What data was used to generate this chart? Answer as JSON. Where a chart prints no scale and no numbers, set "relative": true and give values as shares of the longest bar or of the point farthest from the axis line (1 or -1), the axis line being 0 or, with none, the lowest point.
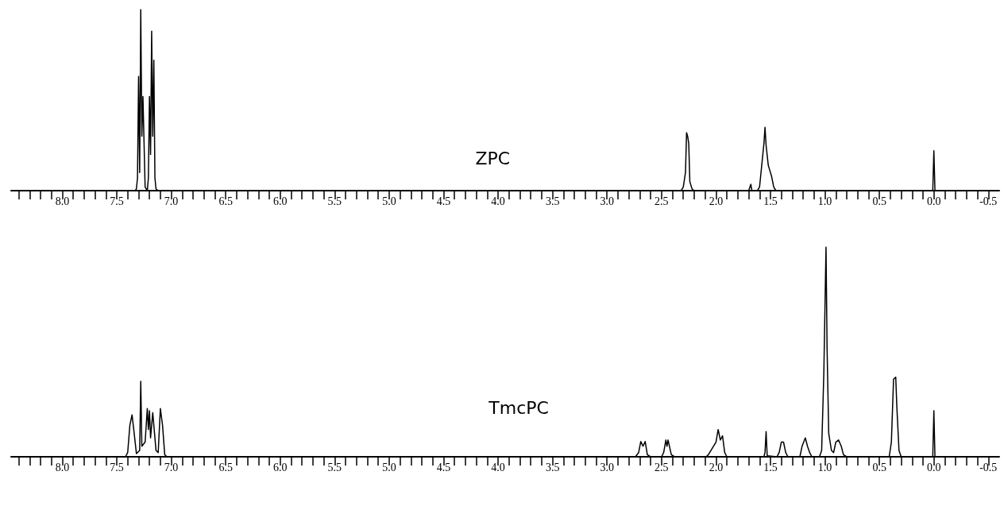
{
  "chart_data": [
    {
      "type": "line",
      "relative": true,
      "xlim": [
        8.47,
        -0.6
      ],
      "grid": false,
      "legend": false,
      "marker": "none",
      "line_style": "solid",
      "xticks": [
        {
          "value": 8.4,
          "label": null
        },
        {
          "value": 8.3,
          "label": null
        },
        {
          "value": 8.2,
          "label": null
        },
        {
          "value": 8.1,
          "label": null
        },
        {
          "value": 8,
          "label": "8.0"
        },
        {
          "value": 7.9,
          "label": null
        },
        {
          "value": 7.8,
          "label": null
        },
        {
          "value": 7.7,
          "label": null
        },
        {
          "value": 7.6,
          "label": null
        },
        7.5,
        {
          "value": 7.4,
          "label": null
        },
        {
          "value": 7.3,
          "label": null
        },
        {
          "value": 7.2,
          "label": null
        },
        {
          "value": 7.1,
          "label": null
        },
        {
          "value": 7,
          "label": "7.0"
        },
        {
          "value": 6.9,
          "label": null
        },
        {
          "value": 6.8,
          "label": null
        },
        {
          "value": 6.7,
          "label": null
        },
        {
          "value": 6.6,
          "label": null
        },
        6.5,
        {
          "value": 6.4,
          "label": null
        },
        {
          "value": 6.3,
          "label": null
        },
        {
          "value": 6.2,
          "label": null
        },
        {
          "value": 6.1,
          "label": null
        },
        {
          "value": 6,
          "label": "6.0"
        },
        {
          "value": 5.9,
          "label": null
        },
        {
          "value": 5.8,
          "label": null
        },
        {
          "value": 5.7,
          "label": null
        },
        {
          "value": 5.6,
          "label": null
        },
        5.5,
        {
          "value": 5.4,
          "label": null
        },
        {
          "value": 5.3,
          "label": null
        },
        {
          "value": 5.2,
          "label": null
        },
        {
          "value": 5.1,
          "label": null
        },
        {
          "value": 5,
          "label": "5.0"
        },
        {
          "value": 4.9,
          "label": null
        },
        {
          "value": 4.8,
          "label": null
        },
        {
          "value": 4.7,
          "label": null
        },
        {
          "value": 4.6,
          "label": null
        },
        4.5,
        {
          "value": 4.4,
          "label": null
        },
        {
          "value": 4.3,
          "label": null
        },
        {
          "value": 4.2,
          "label": null
        },
        {
          "value": 4.1,
          "label": null
        },
        {
          "value": 4,
          "label": "4.0"
        },
        {
          "value": 3.9,
          "label": null
        },
        {
          "value": 3.8,
          "label": null
        },
        {
          "value": 3.7,
          "label": null
        },
        {
          "value": 3.6,
          "label": null
        },
        3.5,
        {
          "value": 3.4,
          "label": null
        },
        {
          "value": 3.3,
          "label": null
        },
        {
          "value": 3.2,
          "label": null
        },
        {
          "value": 3.1,
          "label": null
        },
        {
          "value": 3,
          "label": "3.0"
        },
        {
          "value": 2.9,
          "label": null
        },
        {
          "value": 2.8,
          "label": null
        },
        {
          "value": 2.7,
          "label": null
        },
        {
          "value": 2.6,
          "label": null
        },
        2.5,
        {
          "value": 2.4,
          "label": null
        },
        {
          "value": 2.3,
          "label": null
        },
        {
          "value": 2.2,
          "label": null
        },
        {
          "value": 2.1,
          "label": null
        },
        {
          "value": 2,
          "label": "2.0"
        },
        {
          "value": 1.9,
          "label": null
        },
        {
          "value": 1.8,
          "label": null
        },
        {
          "value": 1.7,
          "label": null
        },
        {
          "value": 1.6,
          "label": null
        },
        1.5,
        {
          "value": 1.4,
          "label": null
        },
        {
          "value": 1.3,
          "label": null
        },
        {
          "value": 1.2,
          "label": null
        },
        {
          "value": 1.1,
          "label": null
        },
        {
          "value": 1,
          "label": "1.0"
        },
        {
          "value": 0.9,
          "label": null
        },
        {
          "value": 0.8,
          "label": null
        },
        {
          "value": 0.7,
          "label": null
        },
        {
          "value": 0.6,
          "label": null
        },
        0.5,
        {
          "value": 0.4,
          "label": null
        },
        {
          "value": 0.3,
          "label": null
        },
        {
          "value": 0.2,
          "label": null
        },
        {
          "value": 0.1,
          "label": null
        },
        {
          "value": 0,
          "label": "0.0"
        },
        {
          "value": -0.1,
          "label": null
        },
        {
          "value": -0.2,
          "label": null
        },
        {
          "value": -0.3,
          "label": null
        },
        {
          "value": -0.4,
          "label": null
        },
        -0.5
      ],
      "series": [
        {
          "name": "ZPC",
          "color": "#000000",
          "x": [
            8.47,
            7.33,
            7.32,
            7.31,
            7.3,
            7.29,
            7.28,
            7.27,
            7.26,
            7.25,
            7.24,
            7.22,
            7.21,
            7.2,
            7.19,
            7.18,
            7.17,
            7.16,
            7.15,
            7.14,
            7.12,
            2.32,
            2.3,
            2.28,
            2.27,
            2.26,
            2.25,
            2.24,
            2.22,
            2.2,
            1.7,
            1.68,
            1.67,
            1.62,
            1.6,
            1.59,
            1.57,
            1.56,
            1.55,
            1.54,
            1.52,
            1.51,
            1.49,
            1.47,
            1.45,
            0.01,
            0.0,
            -0.01,
            -0.6
          ],
          "values": [
            0,
            0,
            0.01,
            0.07,
            0.63,
            0.1,
            1.0,
            0.3,
            0.52,
            0.27,
            0.02,
            0,
            0.07,
            0.52,
            0.2,
            0.88,
            0.3,
            0.72,
            0.07,
            0.01,
            0,
            0,
            0.02,
            0.1,
            0.32,
            0.3,
            0.26,
            0.05,
            0.01,
            0,
            0,
            0.035,
            0,
            0,
            0.02,
            0.08,
            0.2,
            0.26,
            0.35,
            0.25,
            0.14,
            0.12,
            0.08,
            0.02,
            0,
            0,
            0.22,
            0,
            0
          ]
        }
      ]
    },
    {
      "type": "line",
      "relative": true,
      "xlim": [
        8.47,
        -0.6
      ],
      "grid": false,
      "legend": false,
      "marker": "none",
      "line_style": "solid",
      "xticks": [
        {
          "value": 8.4,
          "label": null
        },
        {
          "value": 8.3,
          "label": null
        },
        {
          "value": 8.2,
          "label": null
        },
        {
          "value": 8.1,
          "label": null
        },
        {
          "value": 8,
          "label": "8.0"
        },
        {
          "value": 7.9,
          "label": null
        },
        {
          "value": 7.8,
          "label": null
        },
        {
          "value": 7.7,
          "label": null
        },
        {
          "value": 7.6,
          "label": null
        },
        7.5,
        {
          "value": 7.4,
          "label": null
        },
        {
          "value": 7.3,
          "label": null
        },
        {
          "value": 7.2,
          "label": null
        },
        {
          "value": 7.1,
          "label": null
        },
        {
          "value": 7,
          "label": "7.0"
        },
        {
          "value": 6.9,
          "label": null
        },
        {
          "value": 6.8,
          "label": null
        },
        {
          "value": 6.7,
          "label": null
        },
        {
          "value": 6.6,
          "label": null
        },
        6.5,
        {
          "value": 6.4,
          "label": null
        },
        {
          "value": 6.3,
          "label": null
        },
        {
          "value": 6.2,
          "label": null
        },
        {
          "value": 6.1,
          "label": null
        },
        {
          "value": 6,
          "label": "6.0"
        },
        {
          "value": 5.9,
          "label": null
        },
        {
          "value": 5.8,
          "label": null
        },
        {
          "value": 5.7,
          "label": null
        },
        {
          "value": 5.6,
          "label": null
        },
        5.5,
        {
          "value": 5.4,
          "label": null
        },
        {
          "value": 5.3,
          "label": null
        },
        {
          "value": 5.2,
          "label": null
        },
        {
          "value": 5.1,
          "label": null
        },
        {
          "value": 5,
          "label": "5.0"
        },
        {
          "value": 4.9,
          "label": null
        },
        {
          "value": 4.8,
          "label": null
        },
        {
          "value": 4.7,
          "label": null
        },
        {
          "value": 4.6,
          "label": null
        },
        4.5,
        {
          "value": 4.4,
          "label": null
        },
        {
          "value": 4.3,
          "label": null
        },
        {
          "value": 4.2,
          "label": null
        },
        {
          "value": 4.1,
          "label": null
        },
        {
          "value": 4,
          "label": "4.0"
        },
        {
          "value": 3.9,
          "label": null
        },
        {
          "value": 3.8,
          "label": null
        },
        {
          "value": 3.7,
          "label": null
        },
        {
          "value": 3.6,
          "label": null
        },
        3.5,
        {
          "value": 3.4,
          "label": null
        },
        {
          "value": 3.3,
          "label": null
        },
        {
          "value": 3.2,
          "label": null
        },
        {
          "value": 3.1,
          "label": null
        },
        {
          "value": 3,
          "label": "3.0"
        },
        {
          "value": 2.9,
          "label": null
        },
        {
          "value": 2.8,
          "label": null
        },
        {
          "value": 2.7,
          "label": null
        },
        {
          "value": 2.6,
          "label": null
        },
        2.5,
        {
          "value": 2.4,
          "label": null
        },
        {
          "value": 2.3,
          "label": null
        },
        {
          "value": 2.2,
          "label": null
        },
        {
          "value": 2.1,
          "label": null
        },
        {
          "value": 2,
          "label": "2.0"
        },
        {
          "value": 1.9,
          "label": null
        },
        {
          "value": 1.8,
          "label": null
        },
        {
          "value": 1.7,
          "label": null
        },
        {
          "value": 1.6,
          "label": null
        },
        1.5,
        {
          "value": 1.4,
          "label": null
        },
        {
          "value": 1.3,
          "label": null
        },
        {
          "value": 1.2,
          "label": null
        },
        {
          "value": 1.1,
          "label": null
        },
        {
          "value": 1,
          "label": "1.0"
        },
        {
          "value": 0.9,
          "label": null
        },
        {
          "value": 0.8,
          "label": null
        },
        {
          "value": 0.7,
          "label": null
        },
        {
          "value": 0.6,
          "label": null
        },
        0.5,
        {
          "value": 0.4,
          "label": null
        },
        {
          "value": 0.3,
          "label": null
        },
        {
          "value": 0.2,
          "label": null
        },
        {
          "value": 0.1,
          "label": null
        },
        {
          "value": 0,
          "label": "0.0"
        },
        {
          "value": -0.1,
          "label": null
        },
        {
          "value": -0.2,
          "label": null
        },
        {
          "value": -0.3,
          "label": null
        },
        {
          "value": -0.4,
          "label": null
        },
        -0.5
      ],
      "series": [
        {
          "name": "TmcPC",
          "color": "#000000",
          "x": [
            8.47,
            7.42,
            7.4,
            7.38,
            7.36,
            7.34,
            7.32,
            7.29,
            7.28,
            7.27,
            7.24,
            7.22,
            7.21,
            7.2,
            7.19,
            7.17,
            7.16,
            7.14,
            7.12,
            7.1,
            7.08,
            7.06,
            7.04,
            2.74,
            2.71,
            2.69,
            2.67,
            2.65,
            2.63,
            2.6,
            2.5,
            2.48,
            2.46,
            2.45,
            2.44,
            2.41,
            2.38,
            2.09,
            2.07,
            2.0,
            1.98,
            1.96,
            1.94,
            1.92,
            1.9,
            1.56,
            1.55,
            1.54,
            1.53,
            1.44,
            1.42,
            1.4,
            1.38,
            1.36,
            1.34,
            1.23,
            1.21,
            1.18,
            1.16,
            1.14,
            1.12,
            1.05,
            1.03,
            1.01,
            0.99,
            0.98,
            0.965,
            0.94,
            0.92,
            0.9,
            0.875,
            0.85,
            0.83,
            0.8,
            0.41,
            0.39,
            0.37,
            0.35,
            0.34,
            0.32,
            0.3,
            0.01,
            0.0,
            -0.01,
            -0.6
          ],
          "values": [
            0,
            0,
            0.02,
            0.15,
            0.2,
            0.11,
            0.015,
            0.03,
            0.36,
            0.05,
            0.07,
            0.23,
            0.13,
            0.22,
            0.09,
            0.21,
            0.15,
            0.03,
            0.02,
            0.23,
            0.15,
            0.01,
            0,
            0,
            0.02,
            0.073,
            0.05,
            0.073,
            0.01,
            0,
            0,
            0.02,
            0.08,
            0.05,
            0.08,
            0.01,
            0,
            0,
            0.01,
            0.07,
            0.13,
            0.08,
            0.1,
            0.02,
            0,
            0,
            0.02,
            0.12,
            0.005,
            0,
            0.02,
            0.07,
            0.07,
            0.02,
            0,
            0,
            0.05,
            0.09,
            0.05,
            0.02,
            0,
            0,
            0.03,
            0.4,
            1.0,
            0.51,
            0.11,
            0.03,
            0.02,
            0.07,
            0.08,
            0.05,
            0.01,
            0,
            0,
            0.07,
            0.37,
            0.38,
            0.24,
            0.03,
            0,
            0,
            0.22,
            0,
            0
          ]
        }
      ]
    }
  ]
}
